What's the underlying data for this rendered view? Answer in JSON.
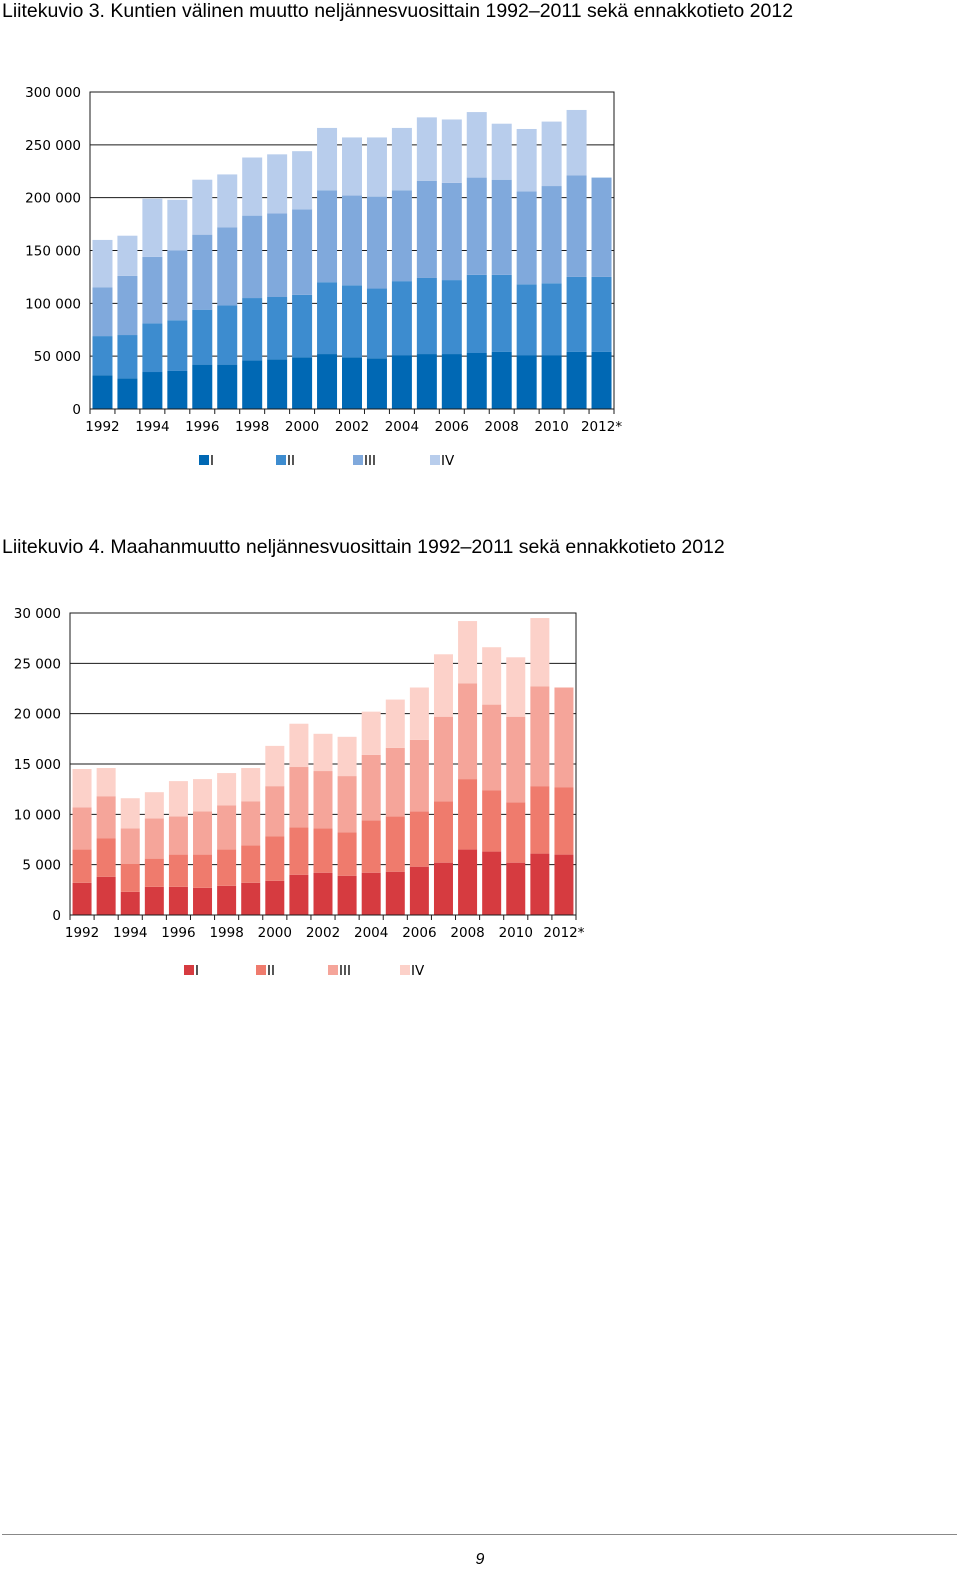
{
  "page": {
    "figure1_title": "Liitekuvio 3. Kuntien välinen muutto neljännesvuosittain 1992–2011 sekä ennakkotieto 2012",
    "figure2_title": "Liitekuvio 4. Maahanmuutto neljännesvuosittain 1992–2011 sekä ennakkotieto 2012",
    "page_number": "9"
  },
  "chart_data": [
    {
      "type": "bar",
      "stacked": true,
      "title": "Liitekuvio 3. Kuntien välinen muutto neljännesvuosittain 1992–2011 sekä ennakkotieto 2012",
      "categories": [
        "1992",
        "1993",
        "1994",
        "1995",
        "1996",
        "1997",
        "1998",
        "1999",
        "2000",
        "2001",
        "2002",
        "2003",
        "2004",
        "2005",
        "2006",
        "2007",
        "2008",
        "2009",
        "2010",
        "2011",
        "2012*"
      ],
      "x_tick_labels": [
        "1992",
        "",
        "1994",
        "",
        "1996",
        "",
        "1998",
        "",
        "2000",
        "",
        "2002",
        "",
        "2004",
        "",
        "2006",
        "",
        "2008",
        "",
        "2010",
        "",
        "2012*"
      ],
      "series": [
        {
          "name": "I",
          "color": "#0068b4",
          "values": [
            32000,
            29000,
            35000,
            36000,
            42000,
            42000,
            46000,
            47000,
            49000,
            52000,
            49000,
            48000,
            51000,
            52000,
            52000,
            53000,
            54000,
            51000,
            51000,
            54000,
            54000
          ]
        },
        {
          "name": "II",
          "color": "#3d8ccf",
          "values": [
            37000,
            41000,
            46000,
            48000,
            52000,
            56000,
            59000,
            59000,
            59000,
            68000,
            68000,
            66000,
            70000,
            72000,
            70000,
            74000,
            73000,
            67000,
            68000,
            71000,
            71000
          ]
        },
        {
          "name": "III",
          "color": "#80a9dc",
          "values": [
            46000,
            56000,
            63000,
            66000,
            71000,
            74000,
            78000,
            79000,
            81000,
            87000,
            85000,
            87000,
            86000,
            92000,
            92000,
            92000,
            90000,
            88000,
            92000,
            96000,
            94000
          ]
        },
        {
          "name": "IV",
          "color": "#b8cdec",
          "values": [
            45000,
            38000,
            55000,
            48000,
            52000,
            50000,
            55000,
            56000,
            55000,
            59000,
            55000,
            56000,
            59000,
            60000,
            60000,
            62000,
            53000,
            59000,
            61000,
            62000,
            0
          ]
        }
      ],
      "ylim": [
        0,
        300000
      ],
      "yticks": [
        0,
        50000,
        100000,
        150000,
        200000,
        250000,
        300000
      ],
      "ytick_labels": [
        "0",
        "50 000",
        "100 000",
        "150 000",
        "200 000",
        "250 000",
        "300 000"
      ],
      "grid": "horizontal",
      "legend": "bottom",
      "xlabel": "",
      "ylabel": ""
    },
    {
      "type": "bar",
      "stacked": true,
      "title": "Liitekuvio 4. Maahanmuutto neljännesvuosittain 1992–2011 sekä ennakkotieto 2012",
      "categories": [
        "1992",
        "1993",
        "1994",
        "1995",
        "1996",
        "1997",
        "1998",
        "1999",
        "2000",
        "2001",
        "2002",
        "2003",
        "2004",
        "2005",
        "2006",
        "2007",
        "2008",
        "2009",
        "2010",
        "2011",
        "2012*"
      ],
      "x_tick_labels": [
        "1992",
        "",
        "1994",
        "",
        "1996",
        "",
        "1998",
        "",
        "2000",
        "",
        "2002",
        "",
        "2004",
        "",
        "2006",
        "",
        "2008",
        "",
        "2010",
        "",
        "2012*"
      ],
      "series": [
        {
          "name": "I",
          "color": "#d63b40",
          "values": [
            3200,
            3800,
            2300,
            2800,
            2800,
            2700,
            2900,
            3200,
            3400,
            4000,
            4200,
            3900,
            4200,
            4300,
            4800,
            5200,
            6500,
            6300,
            5200,
            6100,
            6000
          ]
        },
        {
          "name": "II",
          "color": "#ef7b6d",
          "values": [
            3300,
            3800,
            2800,
            2800,
            3200,
            3300,
            3600,
            3700,
            4400,
            4700,
            4400,
            4300,
            5200,
            5500,
            5500,
            6100,
            7000,
            6100,
            6000,
            6700,
            6700
          ]
        },
        {
          "name": "III",
          "color": "#f5a59a",
          "values": [
            4200,
            4200,
            3500,
            4000,
            3800,
            4300,
            4400,
            4400,
            5000,
            6000,
            5700,
            5600,
            6500,
            6800,
            7100,
            8400,
            9500,
            8500,
            8500,
            9900,
            9900
          ]
        },
        {
          "name": "IV",
          "color": "#fcd1c9",
          "values": [
            3800,
            2800,
            3000,
            2600,
            3500,
            3200,
            3200,
            3300,
            4000,
            4300,
            3700,
            3900,
            4300,
            4800,
            5200,
            6200,
            6200,
            5700,
            5900,
            6800,
            0
          ]
        }
      ],
      "ylim": [
        0,
        30000
      ],
      "yticks": [
        0,
        5000,
        10000,
        15000,
        20000,
        25000,
        30000
      ],
      "ytick_labels": [
        "0",
        "5 000",
        "10 000",
        "15 000",
        "20 000",
        "25 000",
        "30 000"
      ],
      "grid": "horizontal",
      "legend": "bottom",
      "xlabel": "",
      "ylabel": ""
    }
  ]
}
